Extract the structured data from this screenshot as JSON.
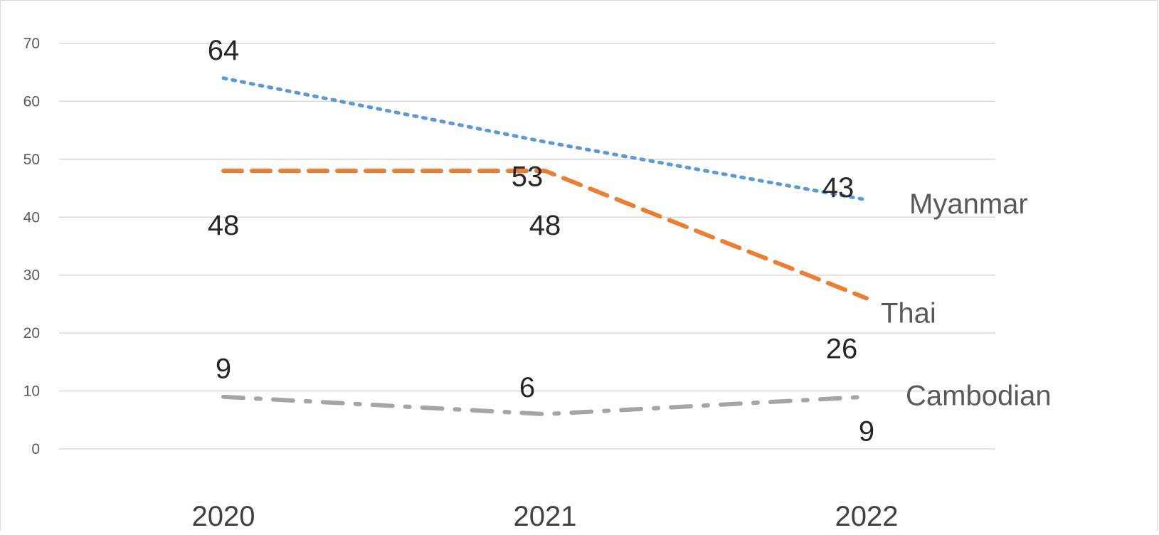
{
  "chart_data": {
    "type": "line",
    "categories": [
      "2020",
      "2021",
      "2022"
    ],
    "ylim": [
      0,
      70
    ],
    "yticks": [
      "0",
      "10",
      "20",
      "30",
      "40",
      "50",
      "60",
      "70"
    ],
    "grid": true,
    "legend": "labels at line ends (right)",
    "series": [
      {
        "name": "Myanmar",
        "values": [
          64,
          53,
          43
        ],
        "labels": [
          "64",
          "53",
          "43"
        ],
        "color": "#5b9bd5",
        "style": "dotted"
      },
      {
        "name": "Thai",
        "values": [
          48,
          48,
          26
        ],
        "labels": [
          "48",
          "48",
          "26"
        ],
        "color": "#ed7d31",
        "style": "dashed"
      },
      {
        "name": "Cambodian",
        "values": [
          9,
          6,
          9
        ],
        "labels": [
          "9",
          "6",
          "9"
        ],
        "color": "#a5a5a5",
        "style": "dash-dot"
      }
    ]
  }
}
